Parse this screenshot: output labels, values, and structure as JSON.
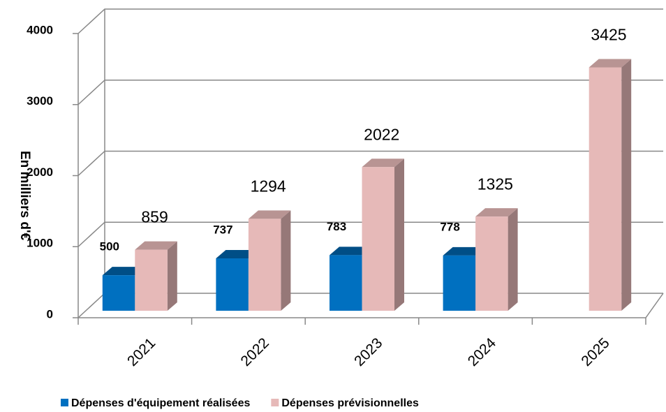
{
  "chart_data": {
    "type": "bar3d",
    "y_label": "En milliers d'€",
    "categories": [
      "2021",
      "2022",
      "2023",
      "2024",
      "2025"
    ],
    "series": [
      {
        "name": "Dépenses d'équipement réalisées",
        "color": "#0070c0",
        "values": [
          500,
          737,
          783,
          778,
          null
        ]
      },
      {
        "name": "Dépenses prévisionnelles",
        "color": "#e6b9b8",
        "values": [
          859,
          1294,
          2022,
          1325,
          3425
        ]
      }
    ],
    "ylim": [
      0,
      4000
    ],
    "yticks": [
      0,
      1000,
      2000,
      3000,
      4000
    ],
    "grid": true,
    "legend": "bottom"
  }
}
